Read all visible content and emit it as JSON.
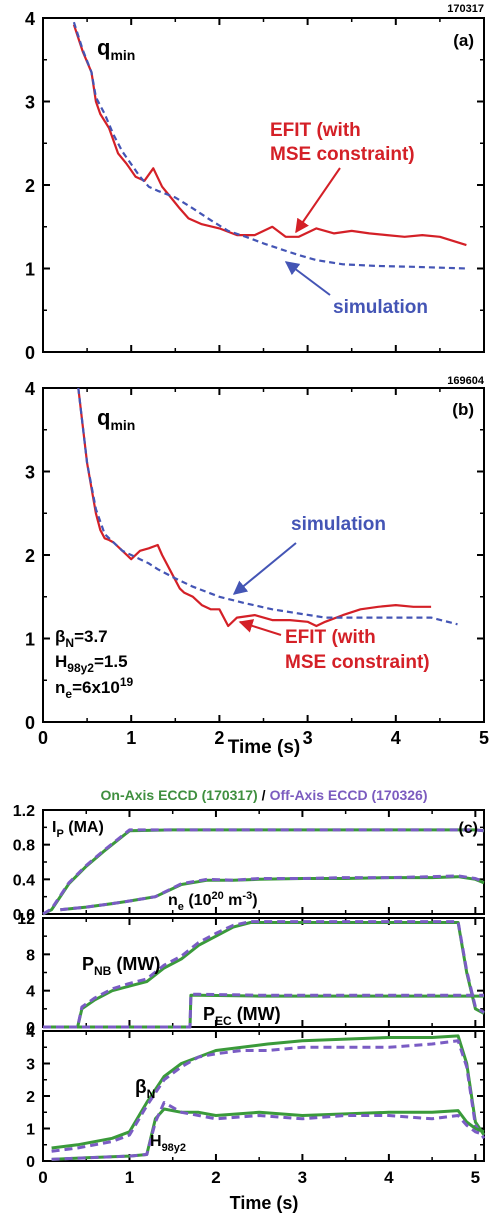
{
  "figure": {
    "panel_a": {
      "shot": "170317",
      "letter": "(a)",
      "quantity": "q",
      "quantity_sub": "min",
      "label_efit_line1": "EFIT (with",
      "label_efit_line2": "MSE constraint)",
      "label_sim": "simulation"
    },
    "panel_b": {
      "shot": "169604",
      "letter": "(b)",
      "quantity": "q",
      "quantity_sub": "min",
      "label_efit_line1": "EFIT (with",
      "label_efit_line2": "MSE constraint)",
      "label_sim": "simulation",
      "param_beta_main": "β",
      "param_beta_sub": "N",
      "param_beta_val": "=3.7",
      "param_h_main": "H",
      "param_h_sub": "98y2",
      "param_h_val": "=1.5",
      "param_ne_main": "n",
      "param_ne_sub": "e",
      "param_ne_val": "=6x10",
      "param_ne_sup": "19"
    },
    "panel_c": {
      "letter": "(c)",
      "legend_on": "On-Axis ECCD (170317)",
      "legend_sep": "/",
      "legend_off": "Off-Axis ECCD (170326)",
      "label_ip_main": "I",
      "label_ip_sub": "P",
      "label_ip_unit": " (MA)",
      "label_ne_main": "n",
      "label_ne_sub": "e",
      "label_ne_unit_a": " (10",
      "label_ne_unit_sup": "20",
      "label_ne_unit_b": " m",
      "label_ne_unit_sup2": "-3",
      "label_ne_unit_c": ")",
      "label_pnb_main": "P",
      "label_pnb_sub": "NB",
      "label_pnb_unit": " (MW)",
      "label_pec_main": "P",
      "label_pec_sub": "EC",
      "label_pec_unit": " (MW)",
      "label_beta_main": "β",
      "label_beta_sub": "N",
      "label_h_main": "H",
      "label_h_sub": "98y2"
    },
    "xlabel_b": "Time (s)",
    "xlabel_c": "Time (s)",
    "colors": {
      "efit": "#d42027",
      "simulation": "#4455b5",
      "on_axis": "#3a9a3a",
      "off_axis": "#7a5cc4",
      "legend_on": "#3f8f3f",
      "legend_off": "#7b5bbf"
    }
  },
  "chart_data": [
    {
      "type": "line",
      "panel": "a",
      "xlim": [
        0,
        5
      ],
      "ylim": [
        0,
        4
      ],
      "yticks": [
        "0",
        "1",
        "2",
        "3",
        "4"
      ],
      "xticks": [],
      "series": [
        {
          "name": "EFIT (with MSE constraint)",
          "style": "solid",
          "x": [
            0.35,
            0.45,
            0.55,
            0.6,
            0.65,
            0.75,
            0.85,
            0.95,
            1.05,
            1.15,
            1.25,
            1.35,
            1.45,
            1.55,
            1.65,
            1.8,
            2.0,
            2.2,
            2.4,
            2.6,
            2.75,
            2.9,
            3.1,
            3.3,
            3.5,
            3.7,
            3.9,
            4.1,
            4.3,
            4.5,
            4.8
          ],
          "y": [
            3.92,
            3.6,
            3.35,
            3.0,
            2.85,
            2.68,
            2.38,
            2.25,
            2.1,
            2.05,
            2.2,
            1.98,
            1.85,
            1.72,
            1.6,
            1.53,
            1.48,
            1.4,
            1.4,
            1.5,
            1.38,
            1.38,
            1.48,
            1.42,
            1.45,
            1.42,
            1.4,
            1.38,
            1.4,
            1.38,
            1.28
          ]
        },
        {
          "name": "simulation",
          "style": "dashed",
          "x": [
            0.35,
            0.45,
            0.55,
            0.6,
            0.7,
            0.8,
            0.9,
            1.0,
            1.1,
            1.2,
            1.3,
            1.5,
            1.7,
            1.9,
            2.1,
            2.3,
            2.5,
            2.7,
            2.9,
            3.1,
            3.4,
            3.8,
            4.2,
            4.8
          ],
          "y": [
            3.95,
            3.62,
            3.35,
            3.05,
            2.85,
            2.6,
            2.4,
            2.25,
            2.1,
            1.98,
            1.93,
            1.85,
            1.72,
            1.58,
            1.45,
            1.38,
            1.3,
            1.23,
            1.16,
            1.1,
            1.05,
            1.03,
            1.02,
            1.0
          ]
        }
      ]
    },
    {
      "type": "line",
      "panel": "b",
      "xlim": [
        0,
        5
      ],
      "ylim": [
        0,
        4
      ],
      "yticks": [
        "0",
        "1",
        "2",
        "3",
        "4"
      ],
      "xticks": [
        "0",
        "1",
        "2",
        "3",
        "4",
        "5"
      ],
      "xlabel": "Time (s)",
      "series": [
        {
          "name": "EFIT (with MSE constraint)",
          "style": "solid",
          "x": [
            0.4,
            0.5,
            0.55,
            0.6,
            0.65,
            0.7,
            0.75,
            0.8,
            0.9,
            1.0,
            1.1,
            1.2,
            1.3,
            1.35,
            1.45,
            1.55,
            1.6,
            1.7,
            1.8,
            1.9,
            2.0,
            2.1,
            2.2,
            2.4,
            2.6,
            2.8,
            3.0,
            3.1,
            3.2,
            3.4,
            3.6,
            3.8,
            4.0,
            4.2,
            4.4
          ],
          "y": [
            4.0,
            3.1,
            2.8,
            2.5,
            2.3,
            2.2,
            2.18,
            2.15,
            2.05,
            1.95,
            2.05,
            2.08,
            2.12,
            2.0,
            1.8,
            1.6,
            1.55,
            1.5,
            1.4,
            1.35,
            1.35,
            1.15,
            1.25,
            1.28,
            1.22,
            1.22,
            1.2,
            1.15,
            1.2,
            1.28,
            1.35,
            1.38,
            1.4,
            1.38,
            1.38
          ]
        },
        {
          "name": "simulation",
          "style": "dashed",
          "x": [
            0.4,
            0.5,
            0.6,
            0.7,
            0.8,
            0.9,
            1.0,
            1.1,
            1.2,
            1.3,
            1.5,
            1.7,
            2.0,
            2.3,
            2.6,
            2.9,
            3.2,
            3.5,
            3.8,
            4.1,
            4.4,
            4.7
          ],
          "y": [
            4.0,
            3.1,
            2.55,
            2.25,
            2.15,
            2.05,
            2.0,
            1.95,
            1.9,
            1.83,
            1.72,
            1.62,
            1.5,
            1.42,
            1.35,
            1.3,
            1.25,
            1.25,
            1.25,
            1.25,
            1.25,
            1.17
          ]
        }
      ]
    },
    {
      "type": "line",
      "panel": "c-top",
      "xlim": [
        0,
        5.1
      ],
      "ylim": [
        0,
        1.2
      ],
      "yticks": [
        "0.0",
        "0.4",
        "0.8",
        "1.2"
      ],
      "series": [
        {
          "name": "On-Axis ECCD (170317)",
          "quantity": "IP (MA)",
          "style": "solid",
          "x": [
            0,
            0.1,
            0.3,
            0.5,
            0.7,
            0.9,
            1.0,
            1.5,
            2.0,
            3.0,
            4.0,
            4.8,
            5.0,
            5.1
          ],
          "y": [
            0,
            0.05,
            0.35,
            0.55,
            0.72,
            0.88,
            0.96,
            0.97,
            0.97,
            0.97,
            0.97,
            0.97,
            0.97,
            0.96
          ]
        },
        {
          "name": "Off-Axis ECCD (170326)",
          "quantity": "IP (MA)",
          "style": "dashed",
          "x": [
            0,
            0.1,
            0.3,
            0.5,
            0.7,
            0.9,
            1.0,
            1.5,
            2.0,
            3.0,
            4.0,
            4.8,
            5.0,
            5.1
          ],
          "y": [
            0,
            0.06,
            0.36,
            0.56,
            0.73,
            0.89,
            0.97,
            0.97,
            0.97,
            0.97,
            0.97,
            0.97,
            0.97,
            0.96
          ]
        },
        {
          "name": "On-Axis ECCD (170317)",
          "quantity": "ne (10^20 m^-3)",
          "style": "solid",
          "x": [
            0.2,
            0.5,
            0.8,
            1.0,
            1.3,
            1.6,
            1.9,
            2.2,
            2.5,
            3.0,
            3.5,
            4.0,
            4.5,
            4.8,
            5.0,
            5.1
          ],
          "y": [
            0.05,
            0.08,
            0.12,
            0.15,
            0.2,
            0.34,
            0.39,
            0.39,
            0.4,
            0.41,
            0.41,
            0.42,
            0.42,
            0.43,
            0.4,
            0.36
          ]
        },
        {
          "name": "Off-Axis ECCD (170326)",
          "quantity": "ne (10^20 m^-3)",
          "style": "dashed",
          "x": [
            0.2,
            0.5,
            0.8,
            1.0,
            1.3,
            1.6,
            1.9,
            2.2,
            2.5,
            3.0,
            3.5,
            4.0,
            4.5,
            4.8,
            5.0,
            5.1
          ],
          "y": [
            0.05,
            0.08,
            0.12,
            0.15,
            0.2,
            0.35,
            0.4,
            0.39,
            0.41,
            0.41,
            0.42,
            0.42,
            0.43,
            0.44,
            0.41,
            0.37
          ]
        }
      ]
    },
    {
      "type": "line",
      "panel": "c-middle",
      "xlim": [
        0,
        5.1
      ],
      "ylim": [
        0,
        12
      ],
      "yticks": [
        "0",
        "4",
        "8",
        "12"
      ],
      "series": [
        {
          "name": "On-Axis ECCD (170317)",
          "quantity": "PNB (MW)",
          "style": "solid",
          "x": [
            0,
            0.4,
            0.45,
            0.6,
            0.8,
            1.0,
            1.2,
            1.4,
            1.6,
            1.8,
            2.0,
            2.2,
            2.4,
            2.6,
            2.8,
            3.0,
            3.5,
            4.0,
            4.5,
            4.8,
            4.9,
            5.0,
            5.1
          ],
          "y": [
            0,
            0,
            2,
            3,
            4,
            4.5,
            5,
            6.5,
            7.5,
            9,
            10,
            11,
            11.5,
            11.5,
            11.5,
            11.5,
            11.5,
            11.5,
            11.5,
            11.5,
            6,
            2,
            1.5
          ]
        },
        {
          "name": "Off-Axis ECCD (170326)",
          "quantity": "PNB (MW)",
          "style": "dashed",
          "x": [
            0,
            0.4,
            0.45,
            0.6,
            0.8,
            1.0,
            1.2,
            1.4,
            1.6,
            1.8,
            2.0,
            2.2,
            2.4,
            2.6,
            2.8,
            3.0,
            3.5,
            4.0,
            4.5,
            4.8,
            4.9,
            5.0,
            5.1
          ],
          "y": [
            0,
            0,
            2.2,
            3.2,
            4.2,
            4.8,
            5.3,
            6.8,
            7.8,
            9.3,
            10.3,
            11.2,
            11.6,
            11.6,
            11.6,
            11.6,
            11.6,
            11.6,
            11.6,
            11.6,
            6.2,
            2.2,
            1.6
          ]
        },
        {
          "name": "On-Axis ECCD (170317)",
          "quantity": "PEC (MW)",
          "style": "solid",
          "x": [
            0,
            1.7,
            1.71,
            1.8,
            2.5,
            3.5,
            4.5,
            5.1
          ],
          "y": [
            0,
            0,
            3.5,
            3.5,
            3.4,
            3.4,
            3.4,
            3.4
          ]
        },
        {
          "name": "Off-Axis ECCD (170326)",
          "quantity": "PEC (MW)",
          "style": "dashed",
          "x": [
            0,
            1.7,
            1.71,
            1.8,
            2.5,
            3.5,
            4.5,
            5.1
          ],
          "y": [
            0,
            0,
            3.6,
            3.6,
            3.5,
            3.5,
            3.5,
            3.5
          ]
        }
      ]
    },
    {
      "type": "line",
      "panel": "c-bottom",
      "xlim": [
        0,
        5.1
      ],
      "ylim": [
        0,
        4
      ],
      "yticks": [
        "0",
        "1",
        "2",
        "3",
        "4"
      ],
      "xticks": [
        "0",
        "1",
        "2",
        "3",
        "4",
        "5"
      ],
      "xlabel": "Time (s)",
      "series": [
        {
          "name": "On-Axis ECCD (170317)",
          "quantity": "βN",
          "style": "solid",
          "x": [
            0.1,
            0.4,
            0.8,
            1.0,
            1.2,
            1.4,
            1.6,
            1.8,
            2.0,
            2.3,
            2.6,
            3.0,
            3.5,
            4.0,
            4.5,
            4.8,
            4.9,
            5.0,
            5.1
          ],
          "y": [
            0.4,
            0.5,
            0.7,
            0.9,
            1.8,
            2.6,
            3.0,
            3.2,
            3.4,
            3.5,
            3.6,
            3.7,
            3.75,
            3.8,
            3.8,
            3.85,
            3.0,
            1.2,
            0.8
          ]
        },
        {
          "name": "Off-Axis ECCD (170326)",
          "quantity": "βN",
          "style": "dashed",
          "x": [
            0.1,
            0.4,
            0.8,
            1.0,
            1.2,
            1.4,
            1.6,
            1.8,
            2.0,
            2.3,
            2.6,
            3.0,
            3.5,
            4.0,
            4.5,
            4.8,
            4.9,
            5.0,
            5.1
          ],
          "y": [
            0.3,
            0.4,
            0.6,
            0.8,
            1.7,
            2.5,
            2.9,
            3.2,
            3.3,
            3.4,
            3.4,
            3.5,
            3.5,
            3.5,
            3.6,
            3.7,
            2.9,
            1.1,
            0.7
          ]
        },
        {
          "name": "On-Axis ECCD (170317)",
          "quantity": "H98y2",
          "style": "solid",
          "x": [
            0.1,
            0.5,
            1.0,
            1.2,
            1.3,
            1.4,
            1.6,
            1.8,
            2.0,
            2.5,
            3.0,
            3.5,
            4.0,
            4.5,
            4.8,
            4.9,
            5.0,
            5.1
          ],
          "y": [
            0.05,
            0.1,
            0.15,
            0.2,
            1.3,
            1.6,
            1.5,
            1.5,
            1.4,
            1.5,
            1.4,
            1.45,
            1.5,
            1.5,
            1.55,
            1.2,
            1.0,
            0.9
          ]
        },
        {
          "name": "Off-Axis ECCD (170326)",
          "quantity": "H98y2",
          "style": "dashed",
          "x": [
            0.1,
            0.5,
            1.0,
            1.2,
            1.3,
            1.4,
            1.6,
            1.8,
            2.0,
            2.5,
            3.0,
            3.5,
            4.0,
            4.5,
            4.8,
            4.9,
            5.0,
            5.1
          ],
          "y": [
            0.05,
            0.1,
            0.15,
            0.2,
            1.2,
            1.8,
            1.5,
            1.4,
            1.3,
            1.4,
            1.3,
            1.4,
            1.4,
            1.3,
            1.4,
            1.1,
            0.9,
            0.8
          ]
        }
      ]
    }
  ]
}
